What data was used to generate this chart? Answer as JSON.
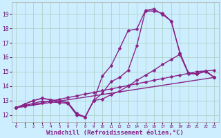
{
  "background_color": "#cceeff",
  "grid_color": "#aaccbb",
  "line_color": "#882288",
  "marker": "D",
  "markersize": 2.5,
  "linewidth": 1.0,
  "xlabel": "Windchill (Refroidissement éolien,°C)",
  "xlabel_fontsize": 6.5,
  "tick_fontsize": 5.5,
  "xlim": [
    -0.5,
    23.5
  ],
  "ylim": [
    11.5,
    19.8
  ],
  "yticks": [
    12,
    13,
    14,
    15,
    16,
    17,
    18,
    19
  ],
  "xticks": [
    0,
    1,
    2,
    3,
    4,
    5,
    6,
    7,
    8,
    9,
    10,
    11,
    12,
    13,
    14,
    15,
    16,
    17,
    18,
    19,
    20,
    21,
    22,
    23
  ],
  "series": [
    {
      "x": [
        0,
        1,
        2,
        3,
        4,
        5,
        6,
        7,
        8,
        9,
        10,
        11,
        12,
        13,
        14,
        15,
        16,
        17,
        18,
        19,
        20,
        21,
        22,
        23
      ],
      "y": [
        12.5,
        12.75,
        13.0,
        13.15,
        13.05,
        12.95,
        12.85,
        12.1,
        11.85,
        13.0,
        14.7,
        15.4,
        16.6,
        17.85,
        17.95,
        19.25,
        19.35,
        18.95,
        18.5,
        16.3,
        14.9,
        14.85,
        15.05,
        14.6
      ]
    },
    {
      "x": [
        0,
        1,
        2,
        3,
        4,
        5,
        6,
        7,
        8,
        9,
        10,
        11,
        12,
        13,
        14,
        15,
        16,
        17,
        18,
        19,
        20,
        21,
        22,
        23
      ],
      "y": [
        12.5,
        12.75,
        13.0,
        13.15,
        13.05,
        12.95,
        12.85,
        12.1,
        11.85,
        13.0,
        13.5,
        14.3,
        14.6,
        15.1,
        16.8,
        19.2,
        19.2,
        19.05,
        18.5,
        16.3,
        14.9,
        14.85,
        15.05,
        14.6
      ]
    },
    {
      "x": [
        0,
        1,
        2,
        3,
        4,
        5,
        6,
        7,
        8,
        9,
        10,
        11,
        12,
        13,
        14,
        15,
        16,
        17,
        18,
        19,
        20,
        21,
        22,
        23
      ],
      "y": [
        12.5,
        12.6,
        12.72,
        12.84,
        12.96,
        13.08,
        13.2,
        13.32,
        13.44,
        13.56,
        13.68,
        13.8,
        13.92,
        14.04,
        14.16,
        14.28,
        14.4,
        14.52,
        14.64,
        14.76,
        14.88,
        15.0,
        15.05,
        15.1
      ]
    },
    {
      "x": [
        0,
        23
      ],
      "y": [
        12.5,
        14.6
      ]
    },
    {
      "x": [
        0,
        1,
        2,
        3,
        4,
        5,
        6,
        7,
        8,
        9,
        10,
        11,
        12,
        13,
        14,
        15,
        16,
        17,
        18,
        19,
        20,
        21,
        22,
        23
      ],
      "y": [
        12.5,
        12.65,
        12.8,
        12.95,
        12.9,
        12.85,
        12.8,
        12.0,
        11.85,
        13.0,
        13.1,
        13.4,
        13.65,
        14.0,
        14.4,
        14.75,
        15.1,
        15.5,
        15.85,
        16.2,
        14.85,
        14.85,
        15.0,
        14.6
      ]
    }
  ]
}
